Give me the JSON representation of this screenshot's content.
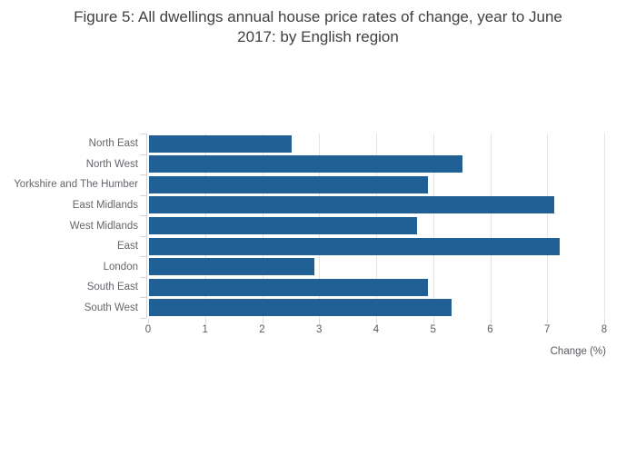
{
  "title": {
    "full": "Figure 5: All dwellings annual house price rates of change, year to June 2017: by English region",
    "line1": "Figure 5: All dwellings annual house price rates of change, year to June",
    "line2": "2017: by English region"
  },
  "chart_data": {
    "type": "bar",
    "orientation": "horizontal",
    "title": "Figure 5: All dwellings annual house price rates of change, year to June 2017: by English region",
    "categories": [
      "North East",
      "North West",
      "Yorkshire and The Humber",
      "East Midlands",
      "West Midlands",
      "East",
      "London",
      "South East",
      "South West"
    ],
    "values": [
      2.5,
      5.5,
      4.9,
      7.1,
      4.7,
      7.2,
      2.9,
      4.9,
      5.3
    ],
    "xlabel": "Change (%)",
    "ylabel": "",
    "xlim": [
      0,
      8
    ],
    "xticks": [
      0,
      1,
      2,
      3,
      4,
      5,
      6,
      7,
      8
    ],
    "grid": true,
    "legend": false,
    "bar_color": "#206095",
    "gridline_color": "#e4e4e8",
    "axis_color": "#c9d2e6"
  }
}
